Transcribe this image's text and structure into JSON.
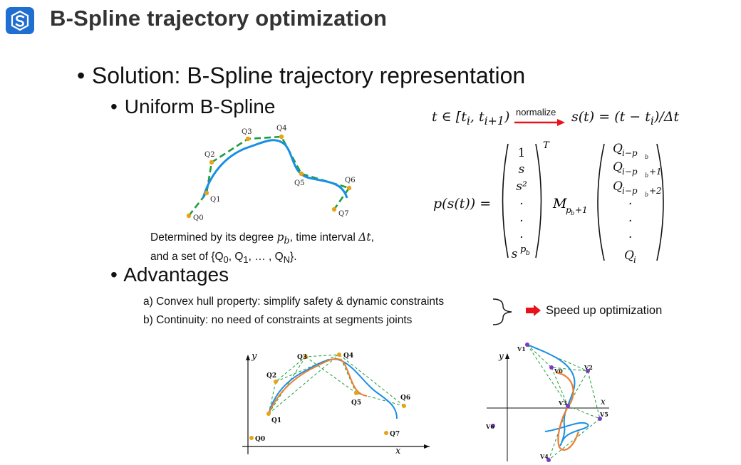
{
  "slide": {
    "title": "B-Spline trajectory optimization",
    "logo_icon": "s-logo-icon"
  },
  "bullets": {
    "solution": "Solution: B-Spline trajectory representation",
    "uniform": "Uniform B-Spline",
    "advantages": "Advantages"
  },
  "figure_top": {
    "labels": [
      "Q0",
      "Q1",
      "Q2",
      "Q3",
      "Q4",
      "Q5",
      "Q6",
      "Q7"
    ]
  },
  "caption": {
    "line1_prefix": "Determined by its degree ",
    "line1_pb": "p",
    "line1_pb_sub": "b",
    "line1_mid": ", time interval ",
    "line1_dt": "Δt",
    "line1_end": ",",
    "line2_prefix": "and a set of ",
    "line2_set": "{Q",
    "line2_set_sub0": "0",
    "line2_comma1": ", Q",
    "line2_set_sub1": "1",
    "line2_dots": ", … , Q",
    "line2_set_subN": "N",
    "line2_end": "}."
  },
  "equation": {
    "t_in": "t ∈ [t",
    "t_i": "i",
    "t_comma": ", t",
    "t_i1": "i+1",
    "t_close": ")",
    "normalize": "normalize",
    "s_of_t": "s(t) = (t − t",
    "s_sub": "i",
    "s_end": ")/Δt",
    "lhs": "p(s(t)) =",
    "vec_s": [
      "1",
      "s",
      "s²",
      "·",
      "·",
      "·",
      "s"
    ],
    "vec_s_last_sup": "p",
    "vec_s_last_supsub": "b",
    "transpose": "T",
    "M": "M",
    "M_sub": "p",
    "M_subsub": "b",
    "M_sub_tail": "+1",
    "vec_q": [
      "Q",
      "Q",
      "Q",
      "·",
      "·",
      "·",
      "Q"
    ],
    "vec_q_sub": [
      "i−p",
      "i−p",
      "i−p",
      "",
      "",
      "",
      "i"
    ],
    "vec_q_subsub": [
      "b",
      "b",
      "b",
      "",
      "",
      "",
      ""
    ],
    "vec_q_tail": [
      "",
      "+1",
      "+2",
      "",
      "",
      "",
      ""
    ]
  },
  "advantages": {
    "a": "a) Convex hull property: simplify safety & dynamic constraints",
    "b": "b) Continuity: no need of constraints at segments joints",
    "result": "Speed up optimization"
  },
  "figure_left": {
    "axis_x": "x",
    "axis_y": "y",
    "labels": [
      "Q0",
      "Q1",
      "Q2",
      "Q3",
      "Q4",
      "Q5",
      "Q6",
      "Q7"
    ]
  },
  "figure_right": {
    "axis_x": "x",
    "axis_y": "y",
    "labels": [
      "V1",
      "V0",
      "V2",
      "V3",
      "V5",
      "V4",
      "V6"
    ]
  },
  "colors": {
    "logo": "#1e6fd0",
    "spline_blue": "#1a8fe3",
    "hull_green": "#1f9e3a",
    "control_point": "#e8a317",
    "spline_orange": "#ee7d31",
    "vertex_purple": "#7b3ac8",
    "arrow_red": "#e8121a"
  }
}
